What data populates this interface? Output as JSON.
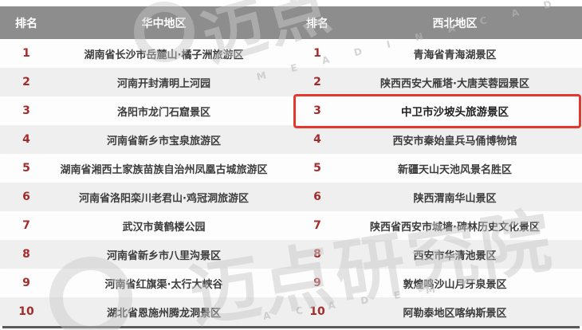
{
  "tables": [
    {
      "region": "华中地区",
      "rank_label": "排名",
      "rows": [
        {
          "rank": "1",
          "name": "湖南省长沙市岳麓山·橘子洲旅游区"
        },
        {
          "rank": "2",
          "name": "河南开封清明上河园"
        },
        {
          "rank": "3",
          "name": "洛阳市龙门石窟景区"
        },
        {
          "rank": "4",
          "name": "河南省新乡市宝泉旅游区"
        },
        {
          "rank": "5",
          "name": "湖南省湘西土家族苗族自治州凤凰古城旅游区"
        },
        {
          "rank": "6",
          "name": "河南省洛阳栾川老君山·鸡冠洞旅游区"
        },
        {
          "rank": "7",
          "name": "武汉市黄鹤楼公园"
        },
        {
          "rank": "8",
          "name": "河南省新乡市八里沟景区"
        },
        {
          "rank": "9",
          "name": "河南省红旗渠·太行大峡谷"
        },
        {
          "rank": "10",
          "name": "湖北省恩施州腾龙洞景区"
        }
      ]
    },
    {
      "region": "西北地区",
      "rank_label": "排名",
      "rows": [
        {
          "rank": "1",
          "name": "青海省青海湖景区"
        },
        {
          "rank": "2",
          "name": "陕西西安大雁塔·大唐芙蓉园景区"
        },
        {
          "rank": "3",
          "name": "中卫市沙坡头旅游景区",
          "highlighted": true
        },
        {
          "rank": "4",
          "name": "西安市秦始皇兵马俑博物馆"
        },
        {
          "rank": "5",
          "name": "新疆天山天池风景名胜区"
        },
        {
          "rank": "6",
          "name": "陕西渭南华山景区"
        },
        {
          "rank": "7",
          "name": "陕西省西安市城墙·碑林历史文化景区"
        },
        {
          "rank": "8",
          "name": "西安市华清池景区"
        },
        {
          "rank": "9",
          "name": "敦煌鸣沙山月牙泉景区"
        },
        {
          "rank": "10",
          "name": "阿勒泰地区喀纳斯景区"
        }
      ]
    }
  ],
  "highlight": {
    "region": "西北地区",
    "rank": "3",
    "name": "中卫市沙坡头旅游景区",
    "box_color": "#e4382f"
  },
  "watermark": {
    "brand_cn_short": "迈点",
    "brand_cn_full": "迈点研究院",
    "letters_top": "M E A D I N  A C A D",
    "letters_bottom": "A C A D E M Y"
  },
  "colors": {
    "header_bg": "#8d8d8d",
    "header_text": "#ffffff",
    "row_white": "#fdfdfd",
    "row_alt": "#efefef",
    "rank_red": "#a22c2c",
    "highlight_red": "#e4382f",
    "bottom_bar": "#5a5a5a"
  },
  "chart_data": {
    "type": "table",
    "tables": [
      {
        "title": "华中地区",
        "columns": [
          "排名",
          "华中地区"
        ],
        "rows": [
          [
            1,
            "湖南省长沙市岳麓山·橘子洲旅游区"
          ],
          [
            2,
            "河南开封清明上河园"
          ],
          [
            3,
            "洛阳市龙门石窟景区"
          ],
          [
            4,
            "河南省新乡市宝泉旅游区"
          ],
          [
            5,
            "湖南省湘西土家族苗族自治州凤凰古城旅游区"
          ],
          [
            6,
            "河南省洛阳栾川老君山·鸡冠洞旅游区"
          ],
          [
            7,
            "武汉市黄鹤楼公园"
          ],
          [
            8,
            "河南省新乡市八里沟景区"
          ],
          [
            9,
            "河南省红旗渠·太行大峡谷"
          ],
          [
            10,
            "湖北省恩施州腾龙洞景区"
          ]
        ]
      },
      {
        "title": "西北地区",
        "columns": [
          "排名",
          "西北地区"
        ],
        "rows": [
          [
            1,
            "青海省青海湖景区"
          ],
          [
            2,
            "陕西西安大雁塔·大唐芙蓉园景区"
          ],
          [
            3,
            "中卫市沙坡头旅游景区"
          ],
          [
            4,
            "西安市秦始皇兵马俑博物馆"
          ],
          [
            5,
            "新疆天山天池风景名胜区"
          ],
          [
            6,
            "陕西渭南华山景区"
          ],
          [
            7,
            "陕西省西安市城墙·碑林历史文化景区"
          ],
          [
            8,
            "西安市华清池景区"
          ],
          [
            9,
            "敦煌鸣沙山月牙泉景区"
          ],
          [
            10,
            "阿勒泰地区喀纳斯景区"
          ]
        ]
      }
    ],
    "annotation": "西北地区排名3（中卫市沙坡头旅游景区）被红色方框高亮标注"
  }
}
